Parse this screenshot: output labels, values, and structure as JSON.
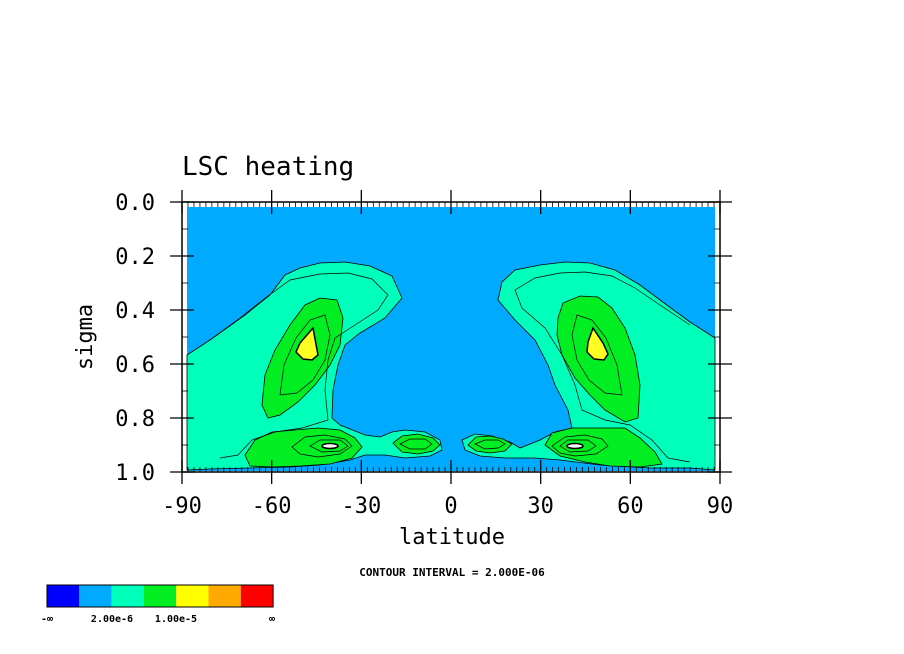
{
  "chart_data": {
    "type": "contour",
    "title": "LSC heating",
    "xlabel": "latitude",
    "ylabel": "sigma",
    "xlim": [
      -90,
      90
    ],
    "ylim": [
      0.0,
      1.0
    ],
    "y_inverted": true,
    "x_ticks": [
      -90,
      -60,
      -30,
      0,
      30,
      60,
      90
    ],
    "x_tick_labels": [
      "-90",
      "-60",
      "-30",
      "0",
      "30",
      "60",
      "90"
    ],
    "y_ticks": [
      0.0,
      0.2,
      0.4,
      0.6,
      0.8,
      1.0
    ],
    "y_tick_labels": [
      "0.0",
      "0.2",
      "0.4",
      "0.6",
      "0.8",
      "1.0"
    ],
    "contour_interval_note": "CONTOUR INTERVAL = 2.000E-06",
    "levels": {
      "background": "#00aaff",
      "band1": "#00ffbb",
      "band2": "#00ee22",
      "band3": "#ffff22"
    },
    "features": [
      {
        "name": "southern-jet-max",
        "lat": -48,
        "sigma": 0.54
      },
      {
        "name": "northern-jet-max",
        "lat": 48,
        "sigma": 0.54
      }
    ],
    "colorbar": {
      "colors": [
        "#0000ff",
        "#00aaff",
        "#00ffbb",
        "#00ee22",
        "#ffff00",
        "#ffaa00",
        "#ff0000"
      ],
      "labels": [
        "-∞",
        "2.00e-6",
        "1.00e-5",
        "∞"
      ]
    }
  }
}
